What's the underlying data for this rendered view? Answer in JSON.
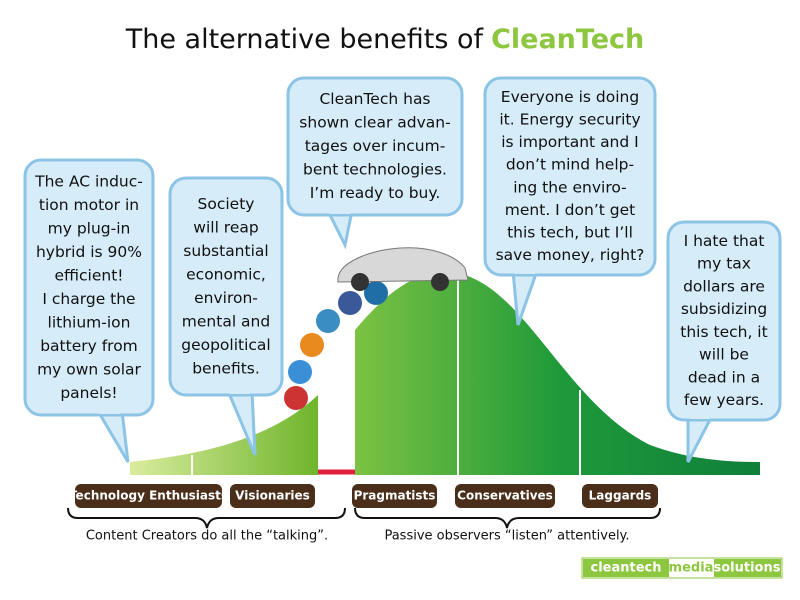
{
  "title": {
    "text": "The alternative benefits of",
    "highlight": "CleanTech"
  },
  "bubbles": [
    {
      "lines": [
        "The AC induc-",
        "tion motor in",
        "my plug-in",
        "hybrid is 90%",
        "efficient!",
        "I charge the",
        "lithium-ion",
        "battery from",
        "my own solar",
        "panels!"
      ]
    },
    {
      "lines": [
        "Society",
        "will reap",
        "substantial",
        "economic,",
        "environ-",
        "mental and",
        "geopolitical",
        "benefits."
      ]
    },
    {
      "lines": [
        "CleanTech has",
        "shown clear advan-",
        "tages over incum-",
        "bent technologies.",
        "I’m ready to buy."
      ]
    },
    {
      "lines": [
        "Everyone is doing",
        "it. Energy security",
        "is important and I",
        "don’t mind help-",
        "ing the enviro-",
        "ment. I don’t get",
        "this tech, but I’ll",
        "save money, right?"
      ]
    },
    {
      "lines": [
        "I hate that",
        "my tax",
        "dollars are",
        "subsidizing",
        "this tech, it",
        "will be",
        "dead in a",
        "few years."
      ]
    }
  ],
  "segments": [
    "Technology Enthusiasts",
    "Visionaries",
    "Pragmatists",
    "Conservatives",
    "Laggards"
  ],
  "groups": [
    "Content Creators do all the “talking”.",
    "Passive observers  “listen” attentively."
  ],
  "logo": [
    "cleantech",
    "media",
    "solutions"
  ]
}
